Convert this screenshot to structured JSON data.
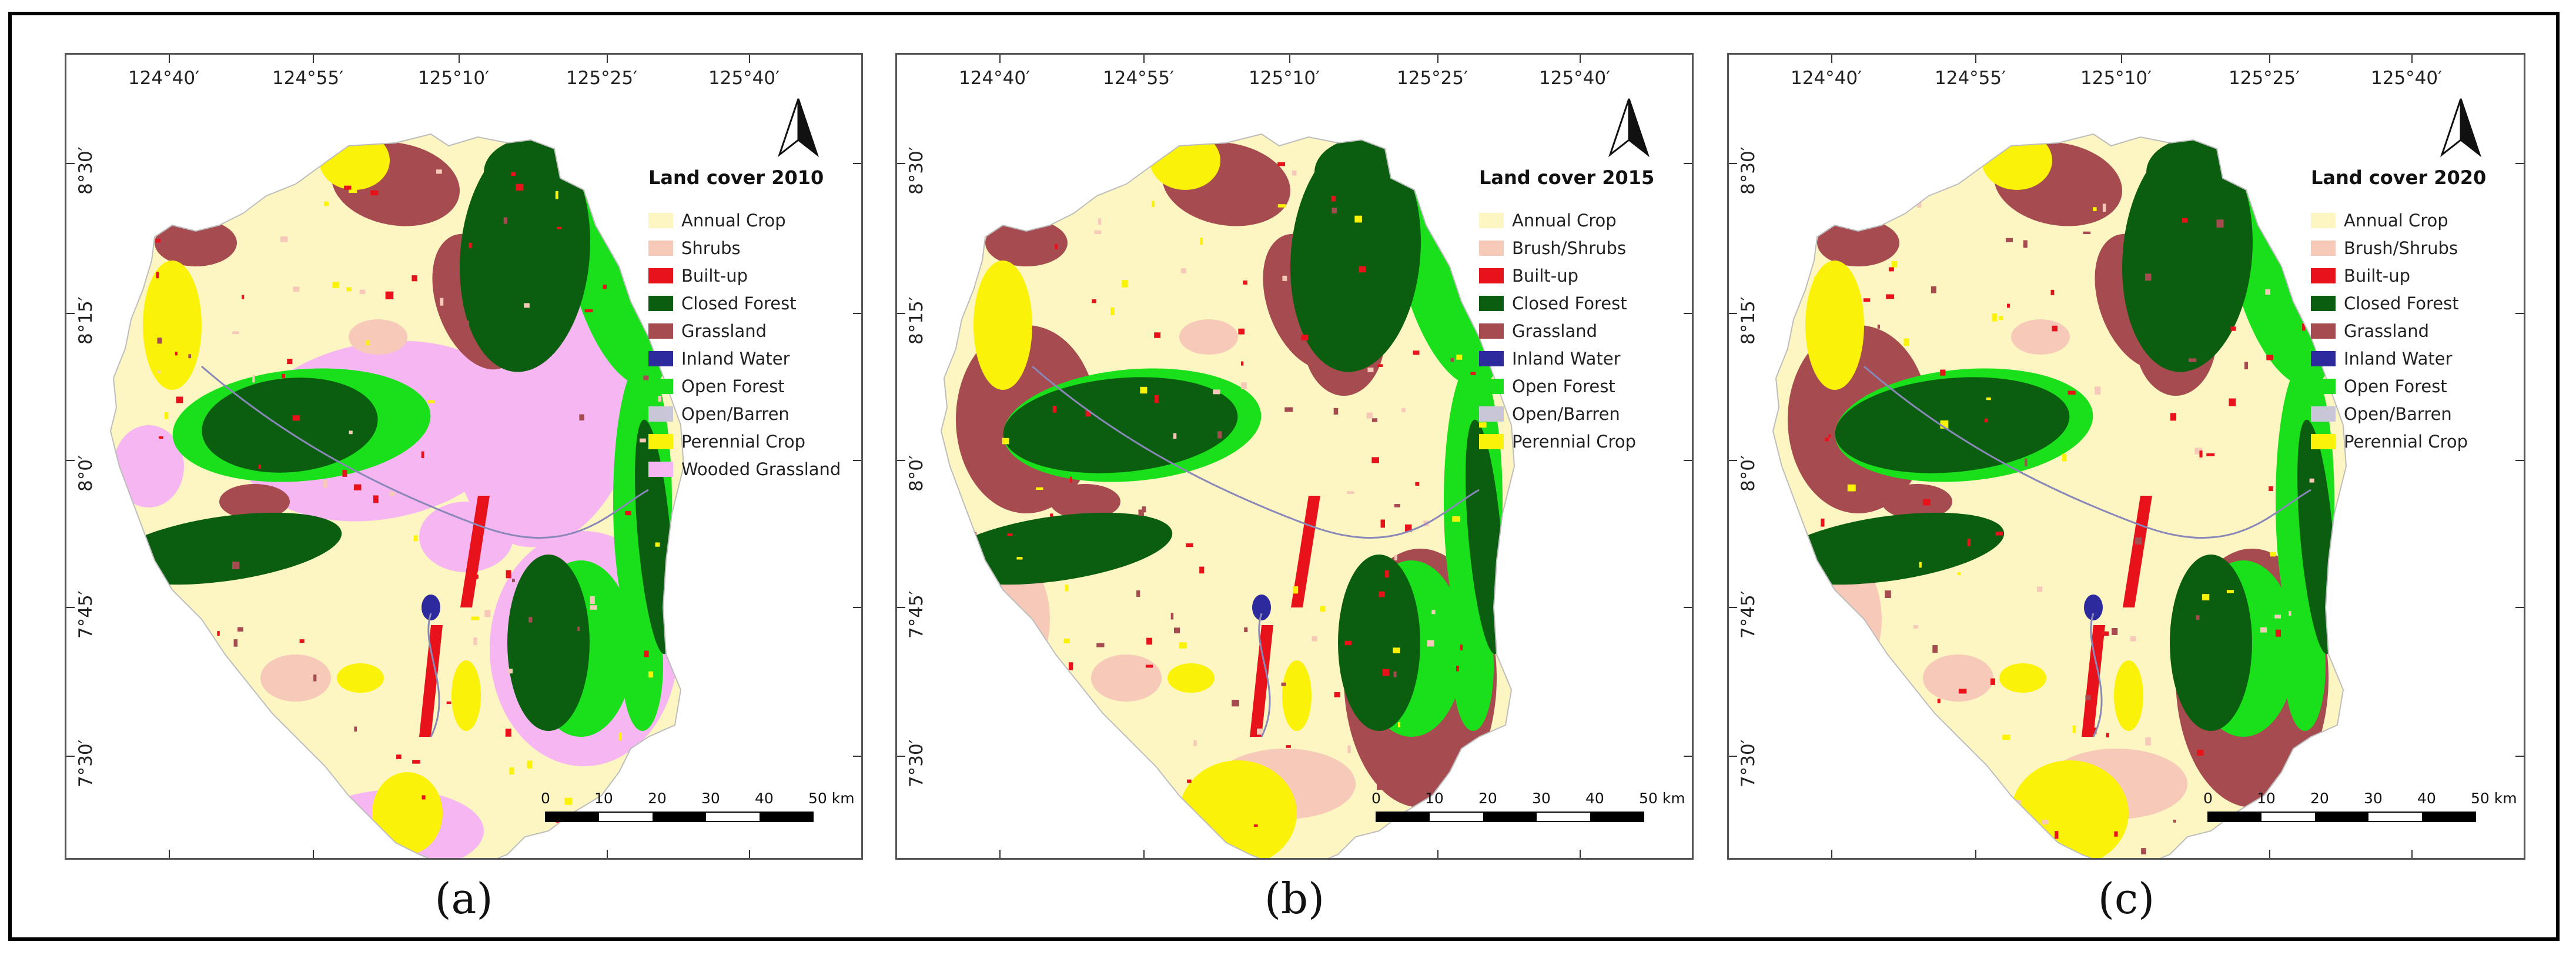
{
  "colors": {
    "annual_crop": "#fdf6c3",
    "shrubs": "#f6c9b8",
    "built_up": "#e8121b",
    "closed_forest": "#0b5e10",
    "grassland": "#a64b4f",
    "inland_water": "#2d2a9e",
    "open_forest": "#19e01a",
    "open_barren": "#c9c6d8",
    "perennial_crop": "#fbf20a",
    "wooded_grassland": "#f5b6f2"
  },
  "x_ticks": [
    "124°40′",
    "124°55′",
    "125°10′",
    "125°25′",
    "125°40′"
  ],
  "y_ticks": [
    "8°30′",
    "8°15′",
    "8°0′",
    "7°45′",
    "7°30′"
  ],
  "scale": {
    "labels": [
      "0",
      "10",
      "20",
      "30",
      "40",
      "50 km"
    ]
  },
  "panels": [
    {
      "sub_label": "(a)",
      "legend_title": "Land cover 2010",
      "legend": [
        {
          "label": "Annual Crop",
          "color_key": "annual_crop"
        },
        {
          "label": "Shrubs",
          "color_key": "shrubs"
        },
        {
          "label": "Built-up",
          "color_key": "built_up"
        },
        {
          "label": "Closed Forest",
          "color_key": "closed_forest"
        },
        {
          "label": "Grassland",
          "color_key": "grassland"
        },
        {
          "label": "Inland Water",
          "color_key": "inland_water"
        },
        {
          "label": "Open Forest",
          "color_key": "open_forest"
        },
        {
          "label": "Open/Barren",
          "color_key": "open_barren"
        },
        {
          "label": "Perennial Crop",
          "color_key": "perennial_crop"
        },
        {
          "label": "Wooded Grassland",
          "color_key": "wooded_grassland"
        }
      ]
    },
    {
      "sub_label": "(b)",
      "legend_title": "Land cover 2015",
      "legend": [
        {
          "label": "Annual Crop",
          "color_key": "annual_crop"
        },
        {
          "label": "Brush/Shrubs",
          "color_key": "shrubs"
        },
        {
          "label": "Built-up",
          "color_key": "built_up"
        },
        {
          "label": "Closed Forest",
          "color_key": "closed_forest"
        },
        {
          "label": "Grassland",
          "color_key": "grassland"
        },
        {
          "label": "Inland Water",
          "color_key": "inland_water"
        },
        {
          "label": "Open Forest",
          "color_key": "open_forest"
        },
        {
          "label": "Open/Barren",
          "color_key": "open_barren"
        },
        {
          "label": "Perennial Crop",
          "color_key": "perennial_crop"
        }
      ]
    },
    {
      "sub_label": "(c)",
      "legend_title": "Land cover 2020",
      "legend": [
        {
          "label": "Annual Crop",
          "color_key": "annual_crop"
        },
        {
          "label": "Brush/Shrubs",
          "color_key": "shrubs"
        },
        {
          "label": "Built-up",
          "color_key": "built_up"
        },
        {
          "label": "Closed Forest",
          "color_key": "closed_forest"
        },
        {
          "label": "Grassland",
          "color_key": "grassland"
        },
        {
          "label": "Inland Water",
          "color_key": "inland_water"
        },
        {
          "label": "Open Forest",
          "color_key": "open_forest"
        },
        {
          "label": "Open/Barren",
          "color_key": "open_barren"
        },
        {
          "label": "Perennial Crop",
          "color_key": "perennial_crop"
        }
      ]
    }
  ]
}
